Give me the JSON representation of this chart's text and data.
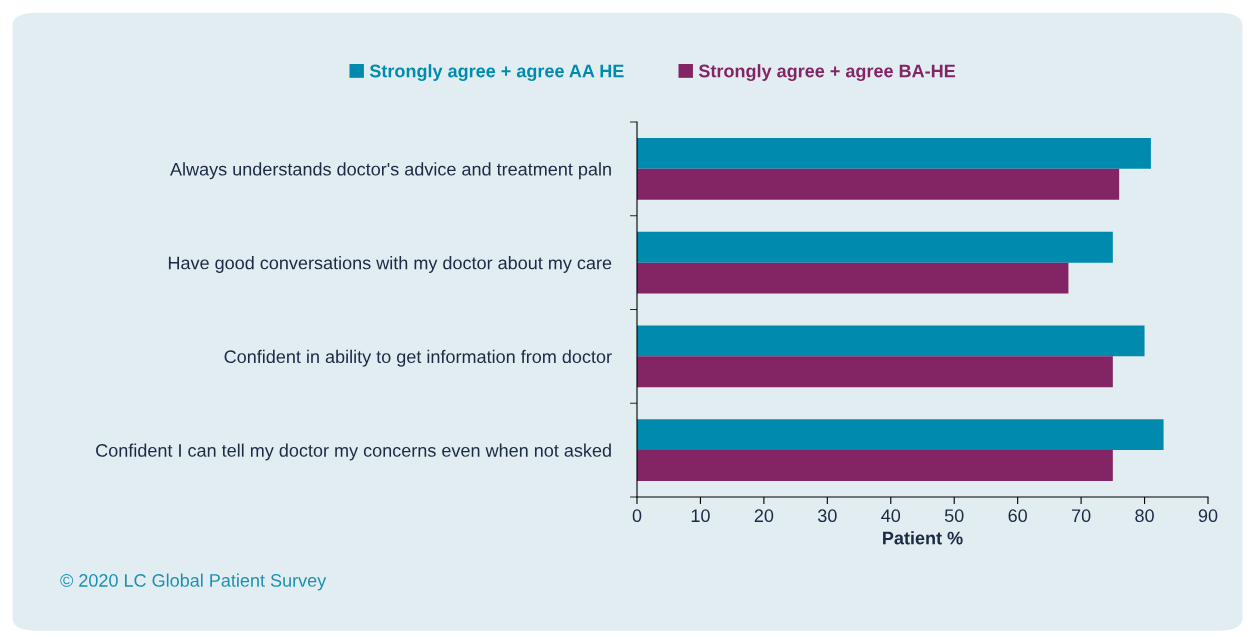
{
  "chart_data": {
    "type": "bar",
    "orientation": "horizontal",
    "xlabel": "Patient %",
    "categories": [
      "Always understands doctor's advice and treatment paln",
      "Have good conversations with my doctor about my care",
      "Confident in ability to get information from doctor",
      "Confident I can tell my doctor my concerns even when not asked"
    ],
    "series": [
      {
        "name": "Strongly agree + agree AA HE",
        "color": "#008bae",
        "values": [
          81,
          75,
          80,
          83
        ]
      },
      {
        "name": "Strongly agree + agree BA-HE",
        "color": "#832565",
        "values": [
          76,
          68,
          75,
          75
        ]
      }
    ],
    "xlim": [
      0,
      90
    ],
    "xticks": [
      0,
      10,
      20,
      30,
      40,
      50,
      60,
      70,
      80,
      90
    ],
    "grid": false,
    "legend": "top",
    "annotations": [
      "© 2020 LC Global Patient Survey"
    ]
  }
}
